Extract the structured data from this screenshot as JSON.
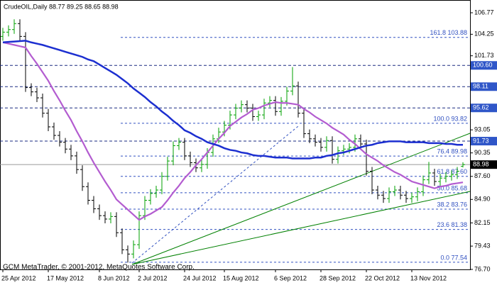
{
  "chart_data": {
    "type": "ohlc",
    "title": "CrudeOIL,Daily  88.77 89.25 88.65 88.98",
    "footer": "GCM MetaTrader, © 2001-2012, MetaQuotes Software Corp.",
    "categories": [
      "25 Apr 2012",
      null,
      null,
      null,
      null,
      null,
      null,
      null,
      "17 May 2012",
      null,
      null,
      null,
      null,
      null,
      null,
      null,
      null,
      "8 Jun 2012",
      null,
      null,
      null,
      null,
      null,
      null,
      "2 Jul 2012",
      null,
      null,
      null,
      null,
      null,
      null,
      null,
      "24 Jul 2012",
      null,
      null,
      null,
      null,
      null,
      null,
      "15 Aug 2012",
      null,
      null,
      null,
      null,
      null,
      null,
      null,
      null,
      "6 Sep 2012",
      null,
      null,
      null,
      null,
      null,
      null,
      null,
      "28 Sep 2012",
      null,
      null,
      null,
      null,
      null,
      null,
      null,
      "22 Oct 2012",
      null,
      null,
      null,
      null,
      null,
      null,
      null,
      "13 Nov 2012",
      null,
      null,
      null,
      null,
      null,
      null,
      null,
      null,
      null
    ],
    "open": [
      104.0,
      104.5,
      104.8,
      105.5,
      104.0,
      98.0,
      97.5,
      96.8,
      95.0,
      93.4,
      92.4,
      91.6,
      90.8,
      90.0,
      88.4,
      86.4,
      84.8,
      83.8,
      83.0,
      82.6,
      82.9,
      81.0,
      79.0,
      78.5,
      79.6,
      83.0,
      84.8,
      85.6,
      86.0,
      87.6,
      89.4,
      91.2,
      91.6,
      90.0,
      89.2,
      88.6,
      89.0,
      90.4,
      92.0,
      92.8,
      93.6,
      94.8,
      95.6,
      96.0,
      95.6,
      94.6,
      94.8,
      96.2,
      96.5,
      95.2,
      96.4,
      97.6,
      98.2,
      95.0,
      92.6,
      92.0,
      91.6,
      91.0,
      91.8,
      89.6,
      90.6,
      90.8,
      91.0,
      92.0,
      91.4,
      88.2,
      86.0,
      85.4,
      85.0,
      85.8,
      86.0,
      85.4,
      85.0,
      85.2,
      85.8,
      87.2,
      88.0,
      87.0,
      87.4,
      87.6,
      87.8,
      88.77
    ],
    "high": [
      105.0,
      105.3,
      106.0,
      106.0,
      104.5,
      98.5,
      98.0,
      97.3,
      95.5,
      93.9,
      92.9,
      92.1,
      91.3,
      90.5,
      88.9,
      86.9,
      85.3,
      84.3,
      83.5,
      83.4,
      83.4,
      81.5,
      79.5,
      80.1,
      83.5,
      85.3,
      86.1,
      86.5,
      88.1,
      89.9,
      91.7,
      92.1,
      92.1,
      90.5,
      89.7,
      89.5,
      90.9,
      92.5,
      93.3,
      94.1,
      95.3,
      96.1,
      96.5,
      96.5,
      96.1,
      95.3,
      96.7,
      97.0,
      97.0,
      96.9,
      98.1,
      100.4,
      98.7,
      95.5,
      93.1,
      92.5,
      92.1,
      92.3,
      92.3,
      91.1,
      91.3,
      91.5,
      92.5,
      92.5,
      91.9,
      88.7,
      86.5,
      85.9,
      86.3,
      86.5,
      86.5,
      85.9,
      85.7,
      86.3,
      87.7,
      89.3,
      88.5,
      87.9,
      88.1,
      88.3,
      88.7,
      89.25
    ],
    "low": [
      103.5,
      104.0,
      104.3,
      103.5,
      97.5,
      97.0,
      96.3,
      94.5,
      92.9,
      91.9,
      91.1,
      90.3,
      89.5,
      87.9,
      85.9,
      84.3,
      83.3,
      82.5,
      82.1,
      82.1,
      80.5,
      78.5,
      77.5,
      78.0,
      79.1,
      82.5,
      84.3,
      85.1,
      85.5,
      87.1,
      88.9,
      90.7,
      89.5,
      88.7,
      88.1,
      88.1,
      88.5,
      89.9,
      91.5,
      92.3,
      93.1,
      94.3,
      95.1,
      95.1,
      94.1,
      94.1,
      94.3,
      95.7,
      94.7,
      94.7,
      95.9,
      97.1,
      94.5,
      92.1,
      91.5,
      91.1,
      90.5,
      90.5,
      89.1,
      89.1,
      90.1,
      90.3,
      90.5,
      90.9,
      87.7,
      85.5,
      84.9,
      84.5,
      84.5,
      85.3,
      84.9,
      84.5,
      84.5,
      84.7,
      85.3,
      86.7,
      86.5,
      86.5,
      86.9,
      87.1,
      87.3,
      88.65
    ],
    "close": [
      104.5,
      104.8,
      105.5,
      104.0,
      98.0,
      97.5,
      96.8,
      95.0,
      93.4,
      92.4,
      91.6,
      90.8,
      90.0,
      88.4,
      86.4,
      84.8,
      83.8,
      83.0,
      82.6,
      82.9,
      81.0,
      79.0,
      78.5,
      79.6,
      83.0,
      84.8,
      85.6,
      86.0,
      87.6,
      89.4,
      91.2,
      91.6,
      90.0,
      89.2,
      88.6,
      89.0,
      90.4,
      92.0,
      92.8,
      93.6,
      94.8,
      95.6,
      96.0,
      95.6,
      94.6,
      94.8,
      96.2,
      96.5,
      95.2,
      96.4,
      97.6,
      98.2,
      95.0,
      92.6,
      92.0,
      91.6,
      91.0,
      91.8,
      89.6,
      90.6,
      90.8,
      91.0,
      92.0,
      91.4,
      88.2,
      86.0,
      85.4,
      85.0,
      85.8,
      86.0,
      85.4,
      85.0,
      85.2,
      85.8,
      87.2,
      88.0,
      87.0,
      87.4,
      87.6,
      87.8,
      88.2,
      88.98
    ],
    "up_color": "#00a000",
    "down_color": "#000000",
    "series": [
      {
        "color": "#b35cd0",
        "values": [
          103.3,
          103.15,
          103.0,
          102.85,
          102.7,
          101.7,
          100.8,
          99.8,
          98.8,
          97.6,
          96.5,
          95.3,
          94.2,
          92.9,
          91.7,
          90.4,
          89.2,
          88.1,
          87.0,
          86.0,
          84.9,
          84.3,
          83.7,
          83.1,
          82.5,
          82.9,
          83.2,
          83.6,
          84.0,
          84.8,
          85.7,
          86.5,
          87.4,
          88.1,
          88.9,
          89.6,
          90.4,
          91.2,
          92.0,
          92.7,
          93.5,
          94.0,
          94.5,
          94.9,
          95.4,
          95.6,
          95.9,
          96.1,
          96.3,
          96.2,
          96.2,
          96.1,
          96.0,
          95.5,
          95.1,
          94.6,
          94.2,
          93.8,
          93.3,
          92.9,
          92.5,
          91.9,
          91.4,
          90.8,
          90.2,
          89.8,
          89.4,
          88.9,
          88.5,
          88.1,
          87.8,
          87.4,
          87.0,
          86.8,
          86.6,
          86.4,
          86.2,
          86.4,
          86.5,
          86.7,
          86.8,
          86.9
        ]
      },
      {
        "color": "#1c2fd0",
        "values": [
          103.3,
          103.35,
          103.4,
          103.45,
          103.5,
          103.3,
          103.15,
          103.0,
          102.8,
          102.6,
          102.4,
          102.2,
          102.0,
          101.8,
          101.6,
          101.3,
          101.1,
          100.7,
          100.3,
          99.9,
          99.5,
          99.0,
          98.5,
          97.9,
          97.4,
          96.9,
          96.3,
          95.8,
          95.2,
          94.7,
          94.1,
          93.6,
          93.0,
          92.7,
          92.3,
          92.0,
          91.6,
          91.4,
          91.2,
          90.9,
          90.7,
          90.6,
          90.4,
          90.3,
          90.1,
          90.0,
          90.0,
          89.9,
          89.8,
          89.8,
          89.8,
          89.7,
          89.7,
          89.7,
          89.7,
          89.8,
          89.8,
          90.0,
          90.1,
          90.3,
          90.4,
          90.6,
          90.8,
          91.0,
          91.2,
          91.3,
          91.5,
          91.6,
          91.7,
          91.7,
          91.7,
          91.6,
          91.6,
          91.6,
          91.6,
          91.5,
          91.5,
          91.5,
          91.4,
          91.4,
          91.3,
          91.3
        ]
      }
    ],
    "ylim": [
      76.7,
      106.77
    ],
    "yticks": [
      106.77,
      104.25,
      101.73,
      93.05,
      90.35,
      {
        "value": 87.6,
        "label": "87.60"
      },
      {
        "value": 84.9,
        "label": "84.90"
      },
      82.15,
      79.43,
      {
        "value": 76.7,
        "label": "76.70"
      }
    ],
    "hlines": [
      {
        "value": 100.6,
        "label": "100.60"
      },
      98.11,
      95.62,
      91.73
    ],
    "fib_levels": [
      {
        "value": 103.88,
        "label": "161.8 103.88"
      },
      {
        "value": 93.82,
        "label": "100.0 93.82"
      },
      {
        "value": 89.98,
        "label": "76.4 89.98"
      },
      {
        "value": 87.6,
        "label": "61.8 87.60"
      },
      {
        "value": 85.68,
        "label": "50.0 85.68"
      },
      {
        "value": 83.76,
        "label": "38.2 83.76"
      },
      {
        "value": 81.38,
        "label": "23.6 81.38"
      },
      {
        "value": 77.54,
        "label": "0.0 77.54"
      }
    ]
  }
}
